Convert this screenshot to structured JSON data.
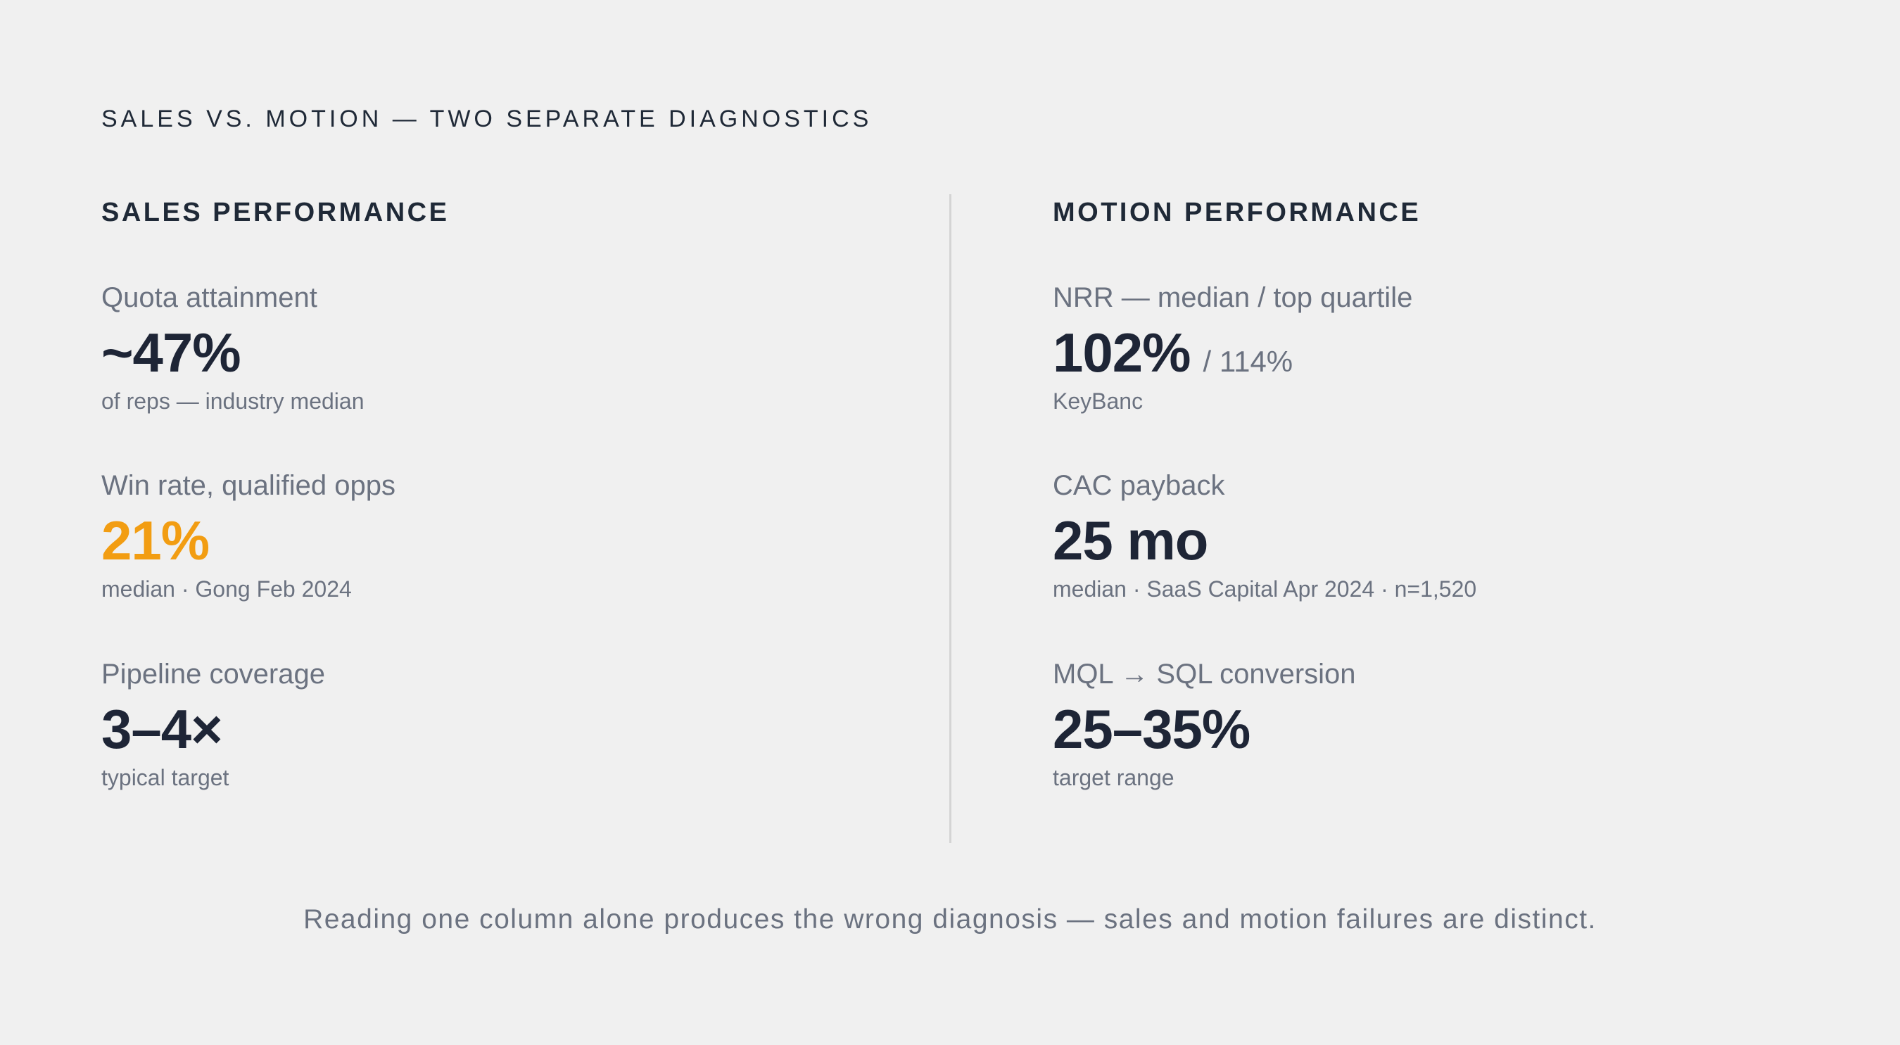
{
  "eyebrow": "SALES VS. MOTION — TWO SEPARATE DIAGNOSTICS",
  "sales": {
    "title": "SALES PERFORMANCE",
    "metrics": [
      {
        "label": "Quota attainment",
        "value": "~47%",
        "note": "of reps — industry median"
      },
      {
        "label": "Win rate, qualified opps",
        "value": "21%",
        "note": "median · Gong Feb 2024"
      },
      {
        "label": "Pipeline coverage",
        "value": "3–4×",
        "note": "typical target"
      }
    ]
  },
  "motion": {
    "title": "MOTION PERFORMANCE",
    "metrics": [
      {
        "label": "NRR — median / top quartile",
        "value": "102%",
        "suffix": "/ 114%",
        "note": "KeyBanc"
      },
      {
        "label": "CAC payback",
        "value": "25 mo",
        "note": "median · SaaS Capital Apr 2024 · n=1,520"
      },
      {
        "label": "MQL → SQL conversion",
        "value": "25–35%",
        "note": "target range"
      }
    ]
  },
  "footer": "Reading one column alone produces the wrong diagnosis — sales and motion failures are distinct.",
  "colors": {
    "background": "#f0f0f0",
    "text_dark": "#1e2536",
    "text_muted": "#6b7280",
    "accent": "#f29d12",
    "divider": "#d4d4d4"
  }
}
